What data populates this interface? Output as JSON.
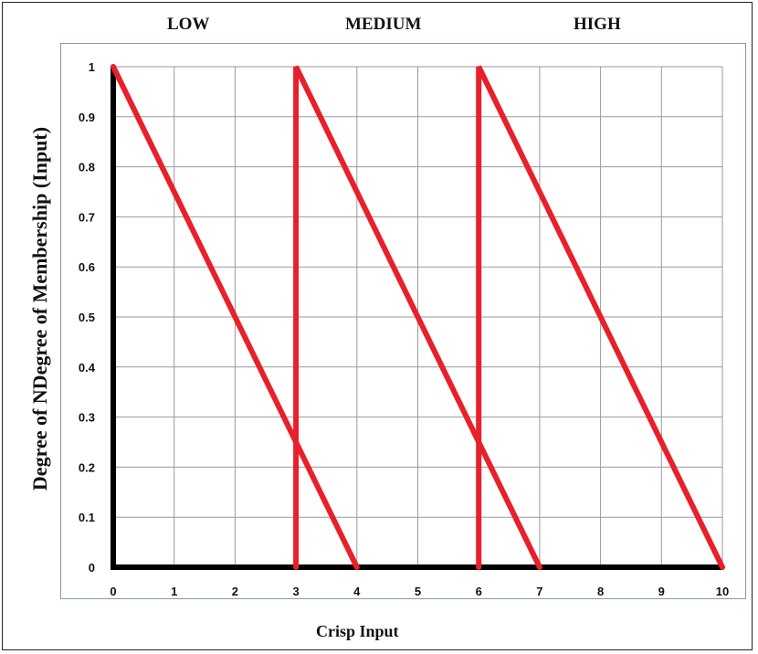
{
  "chart_data": {
    "type": "line",
    "categories_labels": [
      "LOW",
      "MEDIUM",
      "HIGH"
    ],
    "xlabel": "Crisp Input",
    "ylabel": "Degree of NDegree of Membership (Input)",
    "xlim": [
      0,
      10
    ],
    "ylim": [
      0,
      1
    ],
    "x_ticks": [
      0,
      1,
      2,
      3,
      4,
      5,
      6,
      7,
      8,
      9,
      10
    ],
    "y_ticks": [
      0,
      0.1,
      0.2,
      0.3,
      0.4,
      0.5,
      0.6,
      0.7,
      0.8,
      0.9,
      1
    ],
    "grid": true,
    "series": [
      {
        "name": "LOW",
        "color": "#e8202a",
        "points": [
          [
            0,
            1
          ],
          [
            4,
            0
          ]
        ]
      },
      {
        "name": "MEDIUM",
        "color": "#e8202a",
        "points": [
          [
            3,
            0
          ],
          [
            3,
            1
          ],
          [
            7,
            0
          ]
        ]
      },
      {
        "name": "HIGH",
        "color": "#e8202a",
        "points": [
          [
            6,
            0
          ],
          [
            6,
            1
          ],
          [
            10,
            0
          ]
        ]
      }
    ]
  }
}
